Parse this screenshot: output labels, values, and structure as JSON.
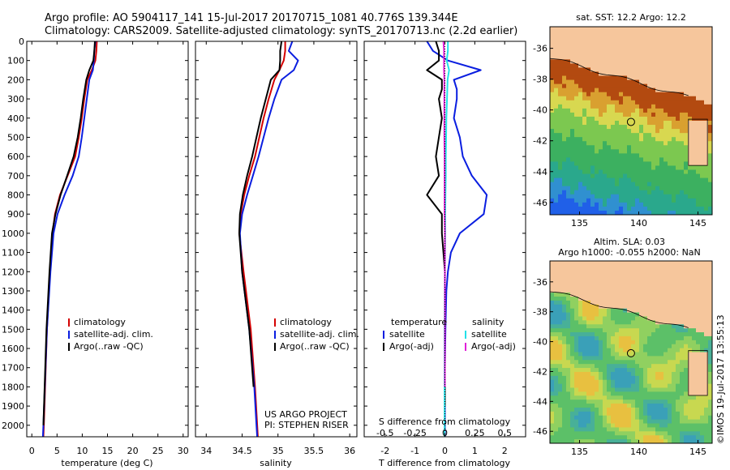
{
  "header": {
    "line1": "Argo profile: AO 5904117_141 15-Jul-2017 20170715_1081 40.776S 139.344E",
    "line2": "Climatology: CARS2009. Satellite-adjusted climatology: synTS_20170713.nc (2.2d earlier)"
  },
  "colors": {
    "climatology": "#d40000",
    "satellite": "#0a1ee0",
    "argo": "#000000",
    "salinity_satellite": "#22e0e8",
    "salinity_argo": "#e020d8",
    "land": "#f6c69c"
  },
  "chart_data": [
    {
      "type": "line",
      "panel": "temperature",
      "xlabel": "temperature (deg C)",
      "xlim": [
        -1,
        31
      ],
      "xticks": [
        0,
        5,
        10,
        15,
        20,
        25,
        30
      ],
      "ylim": [
        0,
        2060
      ],
      "yticks": [
        0,
        100,
        200,
        300,
        400,
        500,
        600,
        700,
        800,
        900,
        1000,
        1100,
        1200,
        1300,
        1400,
        1500,
        1600,
        1700,
        1800,
        1900,
        2000
      ],
      "legend": [
        "climatology",
        "satellite-adj. clim.",
        "Argo(..raw -QC)"
      ],
      "series": [
        {
          "name": "climatology",
          "color": "#d40000",
          "depth": [
            0,
            50,
            100,
            150,
            200,
            300,
            400,
            500,
            600,
            700,
            800,
            900,
            1000,
            1200,
            1500,
            2000,
            2060
          ],
          "values": [
            12.9,
            12.8,
            12.6,
            11.9,
            11.0,
            10.4,
            9.9,
            9.3,
            8.6,
            7.1,
            5.6,
            4.6,
            4.1,
            3.6,
            3.0,
            2.4,
            2.3
          ]
        },
        {
          "name": "satellite-adj. clim.",
          "color": "#0a1ee0",
          "depth": [
            0,
            50,
            100,
            150,
            200,
            300,
            400,
            500,
            600,
            700,
            800,
            900,
            1000,
            1200,
            1500,
            2000,
            2060
          ],
          "values": [
            12.6,
            12.4,
            12.3,
            12.1,
            11.4,
            10.9,
            10.4,
            9.9,
            9.3,
            8.1,
            6.5,
            5.1,
            4.3,
            3.7,
            3.0,
            2.3,
            2.2
          ]
        },
        {
          "name": "Argo(..raw -QC)",
          "color": "#000000",
          "depth": [
            0,
            50,
            100,
            150,
            200,
            300,
            400,
            500,
            600,
            700,
            800,
            900,
            1000,
            1200,
            1500,
            2000
          ],
          "values": [
            12.5,
            12.4,
            12.2,
            11.4,
            10.8,
            10.2,
            9.7,
            9.1,
            8.3,
            7.0,
            5.7,
            4.7,
            4.0,
            3.5,
            2.9,
            2.3
          ]
        }
      ]
    },
    {
      "type": "line",
      "panel": "salinity",
      "xlabel": "salinity",
      "xlim": [
        33.85,
        36.1
      ],
      "xticks": [
        34,
        34.5,
        35,
        35.5,
        36
      ],
      "tick_labels": [
        "34",
        "34.5",
        "35",
        "35.5",
        "36"
      ],
      "legend": [
        "climatology",
        "satellite-adj. clim.",
        "Argo(..raw -QC)"
      ],
      "annotation": [
        "US ARGO PROJECT",
        "PI: STEPHEN RISER"
      ],
      "series": [
        {
          "name": "climatology",
          "color": "#d40000",
          "depth": [
            0,
            50,
            100,
            150,
            200,
            300,
            400,
            500,
            600,
            700,
            800,
            900,
            1000,
            1200,
            1500,
            1800,
            2000,
            2060
          ],
          "values": [
            35.1,
            35.1,
            35.08,
            35.02,
            34.95,
            34.87,
            34.8,
            34.74,
            34.68,
            34.6,
            34.53,
            34.48,
            34.46,
            34.52,
            34.62,
            34.68,
            34.71,
            34.72
          ]
        },
        {
          "name": "satellite-adj. clim.",
          "color": "#0a1ee0",
          "depth": [
            0,
            50,
            100,
            150,
            200,
            300,
            400,
            500,
            600,
            700,
            800,
            900,
            1000,
            1200,
            1500,
            1800,
            2000,
            2060
          ],
          "values": [
            35.2,
            35.15,
            35.28,
            35.22,
            35.05,
            34.95,
            34.87,
            34.8,
            34.73,
            34.65,
            34.57,
            34.5,
            34.47,
            34.5,
            34.6,
            34.67,
            34.7,
            34.71
          ]
        },
        {
          "name": "Argo(..raw -QC)",
          "color": "#000000",
          "depth": [
            0,
            50,
            100,
            150,
            200,
            300,
            400,
            500,
            600,
            700,
            800,
            900,
            1000,
            1200,
            1500,
            1800
          ],
          "values": [
            35.05,
            35.03,
            35.03,
            35.02,
            34.9,
            34.83,
            34.76,
            34.7,
            34.64,
            34.57,
            34.51,
            34.47,
            34.46,
            34.5,
            34.6,
            34.66
          ]
        }
      ]
    },
    {
      "type": "line",
      "panel": "difference",
      "xlabel": "T difference from climatology",
      "xlim": [
        -2.7,
        2.7
      ],
      "xticks": [
        -2,
        -1,
        0,
        1,
        2
      ],
      "top_label": "S difference from climatology",
      "top_ticks": [
        -0.5,
        -0.25,
        0,
        0.25,
        0.5
      ],
      "top_tick_labels": [
        "-0.5",
        "-0.25",
        "0",
        "0.25",
        "0.5"
      ],
      "legend_temperature": {
        "title": "temperature",
        "items": [
          "satellite",
          "Argo(-adj)"
        ]
      },
      "legend_salinity": {
        "title": "salinity",
        "items": [
          "satellite",
          "Argo(-adj)"
        ]
      },
      "series": [
        {
          "name": "temperature satellite",
          "color": "#0a1ee0",
          "depth": [
            0,
            50,
            100,
            150,
            200,
            250,
            300,
            400,
            500,
            600,
            700,
            800,
            900,
            1000,
            1100,
            1200,
            1300,
            1500,
            1700,
            1900,
            2060
          ],
          "values": [
            -0.6,
            -0.4,
            0.1,
            1.2,
            0.3,
            0.4,
            0.4,
            0.3,
            0.5,
            0.6,
            0.9,
            1.4,
            1.3,
            0.5,
            0.2,
            0.1,
            0.05,
            0.02,
            0.0,
            0.0,
            0.0
          ]
        },
        {
          "name": "temperature Argo(-adj)",
          "color": "#000000",
          "depth": [
            0,
            50,
            100,
            150,
            200,
            250,
            300,
            400,
            500,
            600,
            700,
            800,
            900,
            1000,
            1100,
            1200,
            1300,
            1500,
            1700,
            1900
          ],
          "values": [
            -0.3,
            -0.2,
            -0.2,
            -0.6,
            -0.1,
            -0.1,
            -0.2,
            -0.1,
            -0.2,
            -0.3,
            -0.2,
            -0.6,
            -0.1,
            -0.1,
            -0.05,
            0.0,
            0.0,
            0.0,
            0.0,
            0.0
          ]
        },
        {
          "name": "salinity satellite",
          "color": "#22e0e8",
          "depth": [
            0,
            50,
            100,
            150,
            200,
            300,
            400,
            500,
            600,
            700,
            800,
            900,
            1000,
            1200,
            1500,
            1800,
            2060
          ],
          "values": [
            0.1,
            0.1,
            0.06,
            0.14,
            0.09,
            0.07,
            0.05,
            0.04,
            0.03,
            0.03,
            0.02,
            0.01,
            0.01,
            0.0,
            -0.01,
            -0.01,
            -0.01
          ]
        },
        {
          "name": "salinity Argo(-adj)",
          "color": "#e020d8",
          "depth": [
            0,
            50,
            100,
            150,
            200,
            300,
            400,
            500,
            600,
            700,
            800,
            900,
            1000,
            1200,
            1500,
            1800
          ],
          "values": [
            -0.05,
            -0.03,
            -0.03,
            -0.03,
            -0.02,
            -0.02,
            -0.02,
            -0.02,
            -0.01,
            -0.01,
            -0.01,
            -0.01,
            0.0,
            0.0,
            0.0,
            0.0
          ]
        }
      ]
    },
    {
      "type": "heatmap",
      "panel": "sst-map",
      "title": "sat. SST: 12.2  Argo: 12.2",
      "xlim": [
        132.5,
        146.2
      ],
      "ylim": [
        -46.8,
        -34.6
      ],
      "xticks": [
        135,
        140,
        145
      ],
      "yticks": [
        -36,
        -38,
        -40,
        -42,
        -44,
        -46
      ],
      "marker": {
        "lon": 139.344,
        "lat": -40.776
      }
    },
    {
      "type": "heatmap",
      "panel": "sla-map",
      "title": [
        "Altim. SLA: 0.03",
        "Argo h1000: -0.055 h2000: NaN"
      ],
      "xlim": [
        132.5,
        146.2
      ],
      "ylim": [
        -46.8,
        -34.6
      ],
      "xticks": [
        135,
        140,
        145
      ],
      "yticks": [
        -36,
        -38,
        -40,
        -42,
        -44,
        -46
      ],
      "marker": {
        "lon": 139.344,
        "lat": -40.776
      }
    }
  ],
  "footer": {
    "credit": "©IMOS 19-Jul-2017 13:55:13"
  }
}
